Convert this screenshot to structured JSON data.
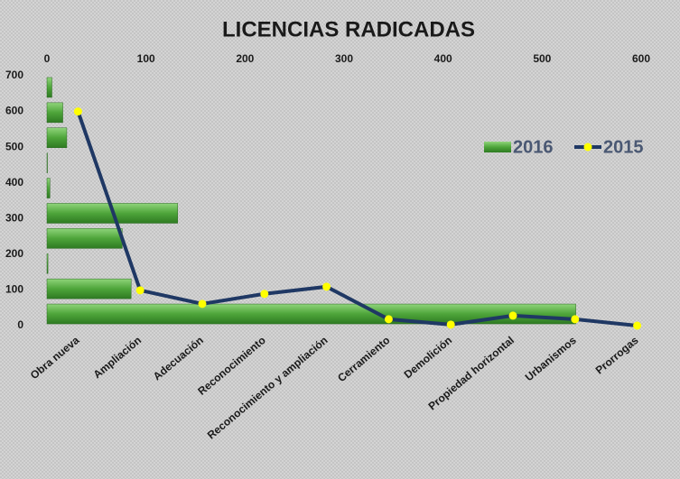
{
  "chart_data": {
    "type": "combo",
    "title": "LICENCIAS RADICADAS",
    "categories": [
      "Obra nueva",
      "Ampliación",
      "Adecuación",
      "Reconocimiento",
      "Reconocimiento y ampliación",
      "Cerramiento",
      "Demolición",
      "Propiedad horizontal",
      "Urbanismos",
      "Prorrogas"
    ],
    "series": [
      {
        "name": "2016",
        "type": "bar",
        "orientation": "horizontal",
        "color": "#4ea53a",
        "values": [
          534,
          85,
          1,
          76,
          132,
          3,
          0.5,
          20,
          16,
          5
        ]
      },
      {
        "name": "2015",
        "type": "line",
        "color": "#1f3864",
        "marker_color": "#ffff00",
        "values": [
          600,
          99,
          61,
          89,
          109,
          18,
          3,
          28,
          18,
          0
        ]
      }
    ],
    "xlim": [
      0,
      600
    ],
    "xticks": [
      0,
      100,
      200,
      300,
      400,
      500,
      600
    ],
    "ylim": [
      0,
      700
    ],
    "yticks": [
      0,
      100,
      200,
      300,
      400,
      500,
      600,
      700
    ],
    "legend": "right"
  }
}
